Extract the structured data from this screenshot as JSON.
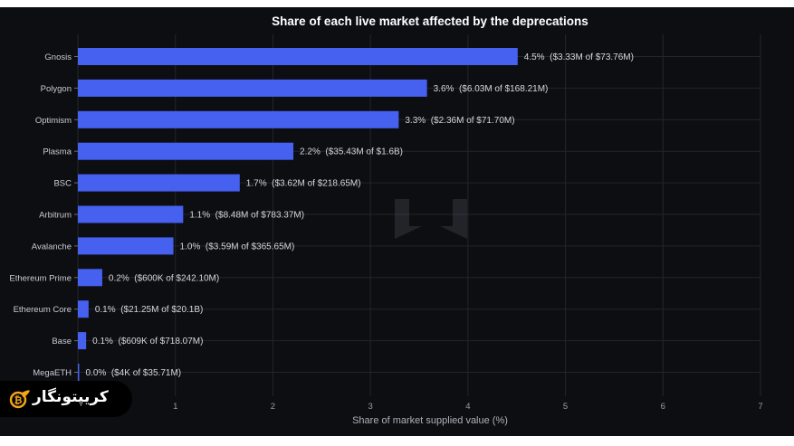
{
  "chart_data": {
    "type": "bar",
    "orientation": "horizontal",
    "title": "Share of each live market affected by the deprecations",
    "xlabel": "Share of market supplied value (%)",
    "ylabel": "",
    "xlim": [
      0,
      7
    ],
    "x_ticks": [
      "1",
      "2",
      "3",
      "4",
      "5",
      "6",
      "7"
    ],
    "grid": true,
    "categories": [
      "Gnosis",
      "Polygon",
      "Optimism",
      "Plasma",
      "BSC",
      "Arbitrum",
      "Avalanche",
      "Ethereum Prime",
      "Ethereum Core",
      "Base",
      "MegaETH"
    ],
    "values": [
      4.51,
      3.58,
      3.29,
      2.21,
      1.66,
      1.08,
      0.98,
      0.25,
      0.11,
      0.085,
      0.01
    ],
    "value_labels": [
      "4.5%  ($3.33M of $73.76M)",
      "3.6%  ($6.03M of $168.21M)",
      "3.3%  ($2.36M of $71.70M)",
      "2.2%  ($35.43M of $1.6B)",
      "1.7%  ($3.62M of $218.65M)",
      "1.1%  ($8.48M of $783.37M)",
      "1.0%  ($3.59M of $365.65M)",
      "0.2%  ($600K of $242.10M)",
      "0.1%  ($21.25M of $20.1B)",
      "0.1%  ($609K of $718.07M)",
      "0.0%  ($4K of $35.71M)"
    ],
    "colors": {
      "bar": "#4660f0",
      "background": "#0d0e12",
      "grid": "#23252c"
    }
  },
  "watermark": {
    "text": "کریپتونگار",
    "logo": "bitcoin-feather-logo-icon"
  }
}
